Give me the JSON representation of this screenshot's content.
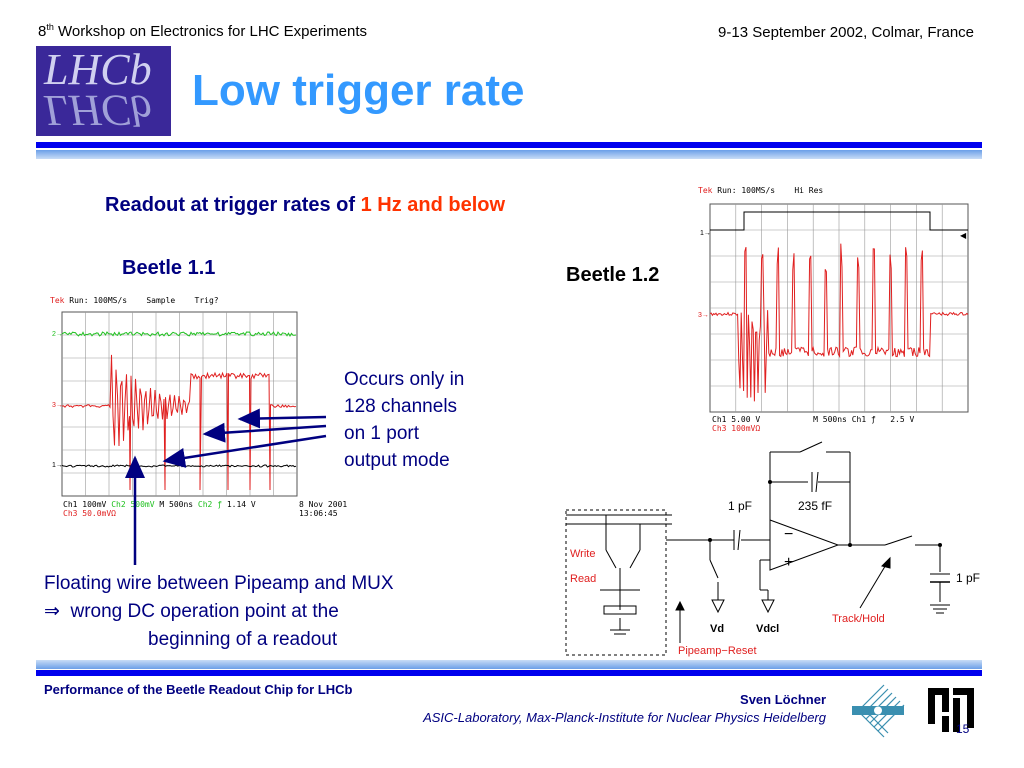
{
  "header": {
    "workshop_prefix": "8",
    "workshop_sup": "th",
    "workshop_rest": " Workshop on Electronics for LHC Experiments",
    "dates": "9-13 September 2002, Colmar, France"
  },
  "logo": {
    "text": "LHCb"
  },
  "title": "Low trigger rate",
  "subtitle": {
    "prefix": "Readout at trigger rates of ",
    "highlight": "1 Hz and below"
  },
  "beetle11": {
    "label": "Beetle 1.1",
    "scope": {
      "status": "Tek",
      "run": "Run: 100MS/s",
      "mode": "Sample",
      "trig": "Trig?",
      "ch1": "Ch1   100mV",
      "ch2": "Ch2   500mV",
      "ch3": "Ch3  50.0mVΩ",
      "time": "M  500ns",
      "trigsrc": "Ch2  ƒ",
      "level": "1.14 V",
      "date": "8 Nov 2001",
      "clock": "13:06:45"
    }
  },
  "beetle12": {
    "label": "Beetle 1.2",
    "scope": {
      "status": "Tek",
      "run": "Run: 100MS/s",
      "mode": "Hi Res",
      "ch1": "Ch1   5.00 V",
      "ch3": "Ch3   100mVΩ",
      "time": "M  500ns  Ch1  ƒ",
      "level": "2.5 V"
    }
  },
  "note": {
    "lines": [
      "Occurs only in",
      "128 channels",
      "on 1 port",
      "output mode"
    ]
  },
  "floating": {
    "line1": "Floating wire between Pipeamp and MUX",
    "arrow": "⇒",
    "line2": "wrong DC operation point at the",
    "line3": "beginning of a readout"
  },
  "circuit": {
    "cap_in": "1 pF",
    "cap_fb": "235 fF",
    "cap_out": "1 pF",
    "write": "Write",
    "read": "Read",
    "vd": "Vd",
    "vdcl": "Vdcl",
    "track_hold": "Track/Hold",
    "pipeamp_reset": "Pipeamp−Reset",
    "minus": "−",
    "plus": "+"
  },
  "footer": {
    "talk_title": "Performance of the Beetle Readout Chip for LHCb",
    "author": "Sven Löchner",
    "institute": "ASIC-Laboratory, Max-Planck-Institute for Nuclear Physics Heidelberg",
    "page": "15"
  },
  "colors": {
    "title": "#3399ff",
    "navy": "#000080",
    "highlight": "#ff3300",
    "rule": "#0000ee",
    "trace_red": "#e02020",
    "trace_green": "#20c020"
  }
}
